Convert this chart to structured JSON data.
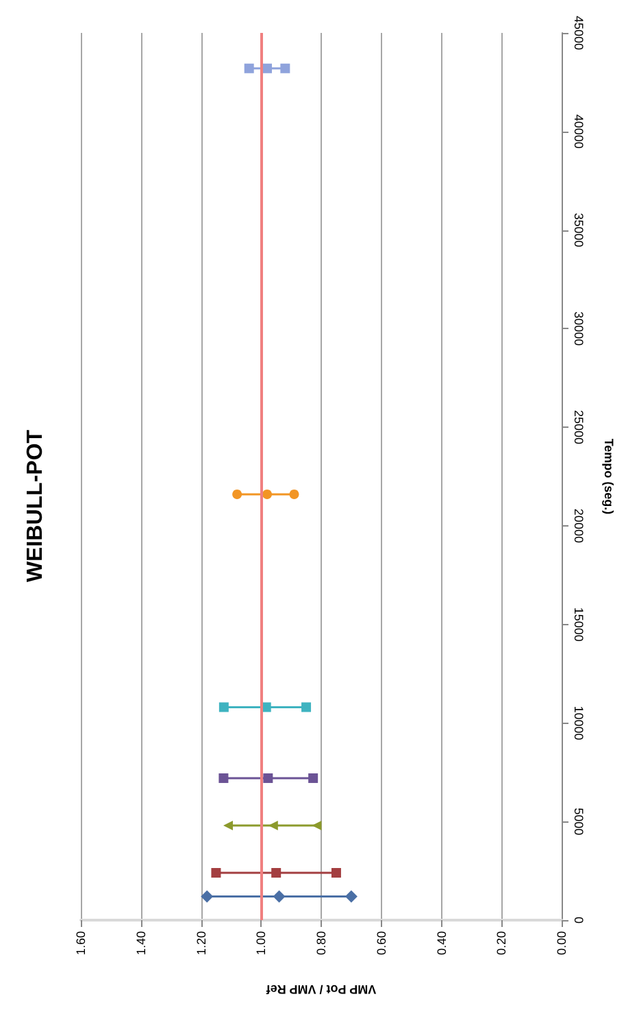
{
  "chart_data": {
    "type": "line",
    "title": "WEIBULL-POT",
    "xlabel": "VMP Pot / VMP Ref",
    "ylabel": "Tempo (seg.)",
    "xlim": [
      1.6,
      0
    ],
    "xticks": [
      {
        "value": 1.6,
        "label": "1.60"
      },
      {
        "value": 1.4,
        "label": "1.40"
      },
      {
        "value": 1.2,
        "label": "1.20"
      },
      {
        "value": 1,
        "label": "1.00"
      },
      {
        "value": 0.8,
        "label": "0.80"
      },
      {
        "value": 0.6,
        "label": "0.60"
      },
      {
        "value": 0.4,
        "label": "0.40"
      },
      {
        "value": 0.2,
        "label": "0.20"
      },
      {
        "value": 0,
        "label": "0.00"
      }
    ],
    "ylim": [
      0,
      45000
    ],
    "yticks": [
      0,
      5000,
      10000,
      15000,
      20000,
      25000,
      30000,
      35000,
      40000,
      45000
    ],
    "grid": "x",
    "ref_lines": [
      {
        "axis": "x",
        "value": 1,
        "color": "#f08080"
      }
    ],
    "series": [
      {
        "color": "#4a6fa5",
        "marker": "diamond",
        "x": [
          1.18,
          0.94,
          0.7
        ],
        "values": [
          1200,
          1200,
          1200
        ]
      },
      {
        "color": "#a33e40",
        "marker": "square",
        "x": [
          1.15,
          0.95,
          0.75
        ],
        "values": [
          2400,
          2400,
          2400
        ]
      },
      {
        "color": "#8c9a2c",
        "marker": "triangle",
        "x": [
          1.11,
          0.96,
          0.815
        ],
        "values": [
          4800,
          4800,
          4800
        ]
      },
      {
        "color": "#6b5395",
        "marker": "square",
        "x": [
          1.125,
          0.977,
          0.827
        ],
        "values": [
          7200,
          7200,
          7200
        ]
      },
      {
        "color": "#3fb3c0",
        "marker": "square",
        "x": [
          1.124,
          0.983,
          0.85
        ],
        "values": [
          10800,
          10800,
          10800
        ]
      },
      {
        "color": "#f29524",
        "marker": "circle",
        "x": [
          1.08,
          0.98,
          0.89
        ],
        "values": [
          21600,
          21600,
          21600
        ]
      },
      {
        "color": "#8fa3dc",
        "marker": "square",
        "x": [
          1.04,
          0.98,
          0.92
        ],
        "values": [
          43200,
          43200,
          43200
        ]
      }
    ]
  }
}
